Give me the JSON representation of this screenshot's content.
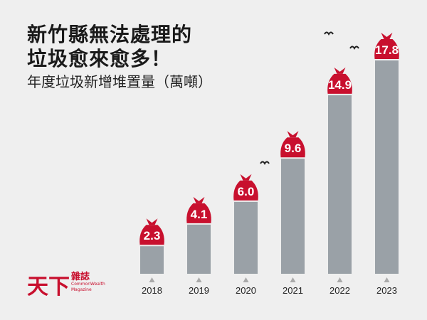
{
  "chart_data": {
    "type": "bar",
    "title": "新竹縣無法處理的垃圾愈來愈多！",
    "title_lines": [
      "新竹縣無法處理的",
      "垃圾愈來愈多！"
    ],
    "subtitle": "年度垃圾新增堆置量（萬噸）",
    "categories": [
      "2018",
      "2019",
      "2020",
      "2021",
      "2022",
      "2023"
    ],
    "values": [
      2.3,
      4.1,
      6.0,
      9.6,
      14.9,
      17.8
    ],
    "value_labels": [
      "2.3",
      "4.1",
      "6.0",
      "9.6",
      "14.9",
      "17.8"
    ],
    "xlabel": "",
    "ylabel": "",
    "ylim": [
      0,
      17.8
    ],
    "grid": false,
    "bar_color": "#9aa1a7",
    "label_color": "#c8102e"
  },
  "logo": {
    "chinese": "天下",
    "sub": "雜誌",
    "english": "CommonWealth Magazine"
  }
}
